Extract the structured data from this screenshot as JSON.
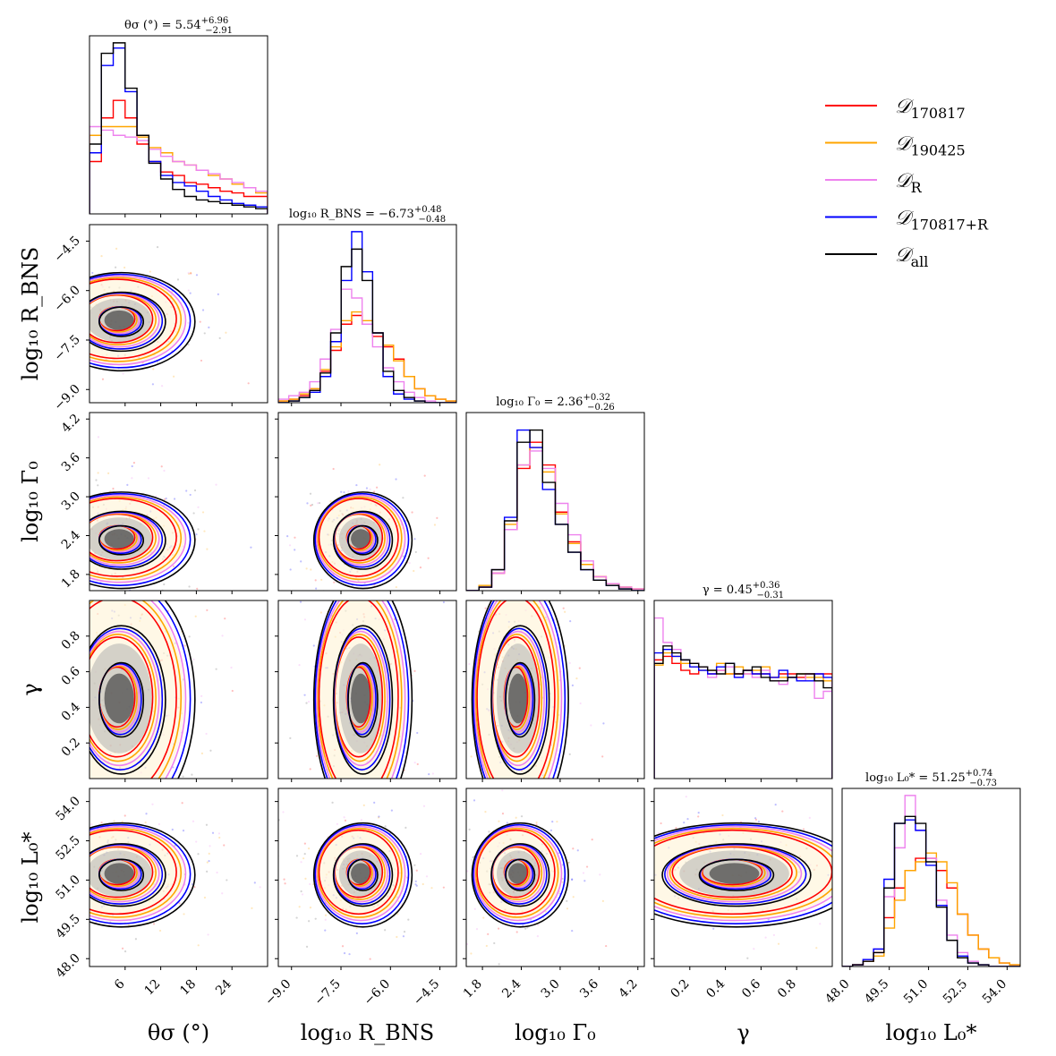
{
  "chart_data": {
    "type": "corner",
    "colors": {
      "D170817": "#ff0000",
      "D190425": "#ffa500",
      "DR": "#ee82ee",
      "D170817R": "#0000ff",
      "Dall": "#000000"
    },
    "legend": [
      {
        "key": "D170817",
        "label": "𝒟",
        "sub": "170817"
      },
      {
        "key": "D190425",
        "label": "𝒟",
        "sub": "190425"
      },
      {
        "key": "DR",
        "label": "𝒟",
        "sub": "R"
      },
      {
        "key": "D170817R",
        "label": "𝒟",
        "sub": "170817+R"
      },
      {
        "key": "Dall",
        "label": "𝒟",
        "sub": "all"
      }
    ],
    "parameters": [
      {
        "name": "theta_sigma",
        "axis_label": "θσ (°)",
        "title_prefix": "θσ (°) = ",
        "median": "5.54",
        "plus": "+6.96",
        "minus": "−2.91",
        "range": [
          0,
          30
        ],
        "ticks": [
          6,
          12,
          18,
          24
        ],
        "tick_labels": [
          "6",
          "12",
          "18",
          "24"
        ]
      },
      {
        "name": "log10_R_BNS",
        "axis_label": "log₁₀ R_BNS",
        "title_prefix": "log₁₀ R_BNS = ",
        "median": "−6.73",
        "plus": "+0.48",
        "minus": "−0.48",
        "range": [
          -9.4,
          -4.0
        ],
        "ticks": [
          -9.0,
          -7.5,
          -6.0,
          -4.5
        ],
        "tick_labels": [
          "−9.0",
          "−7.5",
          "−6.0",
          "−4.5"
        ]
      },
      {
        "name": "log10_Gamma0",
        "axis_label": "log₁₀ Γ₀",
        "title_prefix": "log₁₀ Γ₀ = ",
        "median": "2.36",
        "plus": "+0.32",
        "minus": "−0.26",
        "range": [
          1.55,
          4.3
        ],
        "ticks": [
          1.8,
          2.4,
          3.0,
          3.6,
          4.2
        ],
        "tick_labels": [
          "1.8",
          "2.4",
          "3.0",
          "3.6",
          "4.2"
        ]
      },
      {
        "name": "gamma",
        "axis_label": "γ",
        "title_prefix": "γ = ",
        "median": "0.45",
        "plus": "+0.36",
        "minus": "−0.31",
        "range": [
          0.0,
          1.0
        ],
        "ticks": [
          0.2,
          0.4,
          0.6,
          0.8
        ],
        "tick_labels": [
          "0.2",
          "0.4",
          "0.6",
          "0.8"
        ]
      },
      {
        "name": "log10_L0",
        "axis_label": "log₁₀ L₀*",
        "title_prefix": "log₁₀ L₀* = ",
        "median": "51.25",
        "plus": "+0.74",
        "minus": "−0.73",
        "range": [
          47.7,
          54.5
        ],
        "ticks": [
          48.0,
          49.5,
          51.0,
          52.5,
          54.0
        ],
        "tick_labels": [
          "48.0",
          "49.5",
          "51.0",
          "52.5",
          "54.0"
        ]
      }
    ],
    "marginal_shapes": {
      "theta_sigma": {
        "D170817": [
          0.3,
          0.55,
          0.65,
          0.55,
          0.4,
          0.3,
          0.24,
          0.22,
          0.18,
          0.17,
          0.15,
          0.13,
          0.12,
          0.1,
          0.1
        ],
        "D190425": [
          0.45,
          0.5,
          0.5,
          0.5,
          0.44,
          0.38,
          0.35,
          0.3,
          0.28,
          0.25,
          0.22,
          0.2,
          0.17,
          0.15,
          0.12
        ],
        "DR": [
          0.5,
          0.48,
          0.45,
          0.44,
          0.42,
          0.37,
          0.33,
          0.3,
          0.28,
          0.25,
          0.23,
          0.2,
          0.18,
          0.15,
          0.13
        ],
        "D170817R": [
          0.35,
          0.85,
          0.95,
          0.7,
          0.45,
          0.3,
          0.22,
          0.18,
          0.16,
          0.13,
          0.1,
          0.08,
          0.06,
          0.05,
          0.04
        ],
        "Dall": [
          0.4,
          0.92,
          0.98,
          0.72,
          0.45,
          0.29,
          0.2,
          0.14,
          0.1,
          0.08,
          0.07,
          0.06,
          0.05,
          0.04,
          0.03
        ]
      },
      "log10_R_BNS": {
        "D170817": [
          0.01,
          0.02,
          0.04,
          0.08,
          0.18,
          0.3,
          0.45,
          0.5,
          0.45,
          0.38,
          0.32,
          0.25,
          0.15,
          0.08,
          0.04,
          0.02,
          0.01
        ],
        "D190425": [
          0.01,
          0.02,
          0.05,
          0.08,
          0.19,
          0.32,
          0.47,
          0.52,
          0.47,
          0.4,
          0.33,
          0.24,
          0.15,
          0.08,
          0.04,
          0.02,
          0.01
        ],
        "DR": [
          0.02,
          0.04,
          0.06,
          0.12,
          0.25,
          0.42,
          0.65,
          0.6,
          0.45,
          0.32,
          0.2,
          0.12,
          0.06,
          0.03,
          0.01,
          0.0,
          0.0
        ],
        "D170817R": [
          0.0,
          0.01,
          0.03,
          0.06,
          0.15,
          0.35,
          0.7,
          0.98,
          0.75,
          0.4,
          0.15,
          0.05,
          0.02,
          0.01,
          0.0,
          0.0,
          0.0
        ],
        "Dall": [
          0.0,
          0.01,
          0.03,
          0.07,
          0.17,
          0.4,
          0.78,
          0.88,
          0.7,
          0.4,
          0.18,
          0.07,
          0.03,
          0.01,
          0.0,
          0.0,
          0.0
        ]
      },
      "log10_Gamma0": {
        "D170817": [
          0.0,
          0.02,
          0.1,
          0.35,
          0.7,
          0.85,
          0.72,
          0.45,
          0.28,
          0.15,
          0.08,
          0.04,
          0.02,
          0.01
        ],
        "D190425": [
          0.0,
          0.03,
          0.12,
          0.38,
          0.72,
          0.82,
          0.68,
          0.44,
          0.27,
          0.15,
          0.08,
          0.04,
          0.02,
          0.01
        ],
        "DR": [
          0.0,
          0.02,
          0.1,
          0.35,
          0.72,
          0.8,
          0.7,
          0.5,
          0.32,
          0.17,
          0.08,
          0.04,
          0.02,
          0.01
        ],
        "D170817R": [
          0.0,
          0.02,
          0.12,
          0.42,
          0.92,
          0.82,
          0.58,
          0.38,
          0.22,
          0.12,
          0.06,
          0.03,
          0.01,
          0.0
        ],
        "Dall": [
          0.0,
          0.02,
          0.12,
          0.4,
          0.85,
          0.92,
          0.62,
          0.38,
          0.22,
          0.12,
          0.06,
          0.03,
          0.01,
          0.0
        ]
      },
      "gamma": {
        "D170817": [
          0.68,
          0.7,
          0.66,
          0.62,
          0.6,
          0.64,
          0.6,
          0.62,
          0.6,
          0.6,
          0.62,
          0.6,
          0.6,
          0.58,
          0.6,
          0.6,
          0.58,
          0.6,
          0.6,
          0.6
        ],
        "D190425": [
          0.65,
          0.72,
          0.7,
          0.66,
          0.64,
          0.62,
          0.62,
          0.66,
          0.6,
          0.64,
          0.6,
          0.62,
          0.64,
          0.58,
          0.58,
          0.58,
          0.6,
          0.58,
          0.58,
          0.56
        ],
        "DR": [
          0.92,
          0.78,
          0.74,
          0.68,
          0.66,
          0.64,
          0.58,
          0.62,
          0.64,
          0.58,
          0.6,
          0.58,
          0.62,
          0.56,
          0.54,
          0.58,
          0.56,
          0.6,
          0.46,
          0.5
        ],
        "D170817R": [
          0.72,
          0.74,
          0.7,
          0.68,
          0.64,
          0.62,
          0.6,
          0.64,
          0.66,
          0.58,
          0.62,
          0.6,
          0.6,
          0.58,
          0.62,
          0.58,
          0.56,
          0.56,
          0.6,
          0.58
        ],
        "Dall": [
          0.66,
          0.76,
          0.72,
          0.68,
          0.66,
          0.64,
          0.62,
          0.6,
          0.66,
          0.6,
          0.62,
          0.64,
          0.58,
          0.56,
          0.56,
          0.58,
          0.6,
          0.6,
          0.56,
          0.52
        ]
      },
      "log10_L0": {
        "D170817": [
          0.0,
          0.01,
          0.03,
          0.08,
          0.28,
          0.45,
          0.55,
          0.62,
          0.62,
          0.55,
          0.45,
          0.3,
          0.18,
          0.1,
          0.05,
          0.02,
          0.01
        ],
        "D190425": [
          0.0,
          0.01,
          0.03,
          0.06,
          0.22,
          0.38,
          0.55,
          0.6,
          0.65,
          0.6,
          0.48,
          0.3,
          0.18,
          0.1,
          0.05,
          0.02,
          0.01
        ],
        "DR": [
          0.0,
          0.01,
          0.04,
          0.1,
          0.4,
          0.68,
          0.98,
          0.78,
          0.62,
          0.38,
          0.18,
          0.08,
          0.03,
          0.01,
          0.0,
          0.0,
          0.0
        ],
        "D170817R": [
          0.0,
          0.01,
          0.04,
          0.1,
          0.5,
          0.82,
          0.84,
          0.78,
          0.58,
          0.35,
          0.15,
          0.06,
          0.02,
          0.01,
          0.0,
          0.0,
          0.0
        ],
        "Dall": [
          0.0,
          0.01,
          0.03,
          0.08,
          0.45,
          0.82,
          0.86,
          0.82,
          0.6,
          0.34,
          0.15,
          0.05,
          0.02,
          0.01,
          0.0,
          0.0,
          0.0
        ]
      }
    }
  }
}
